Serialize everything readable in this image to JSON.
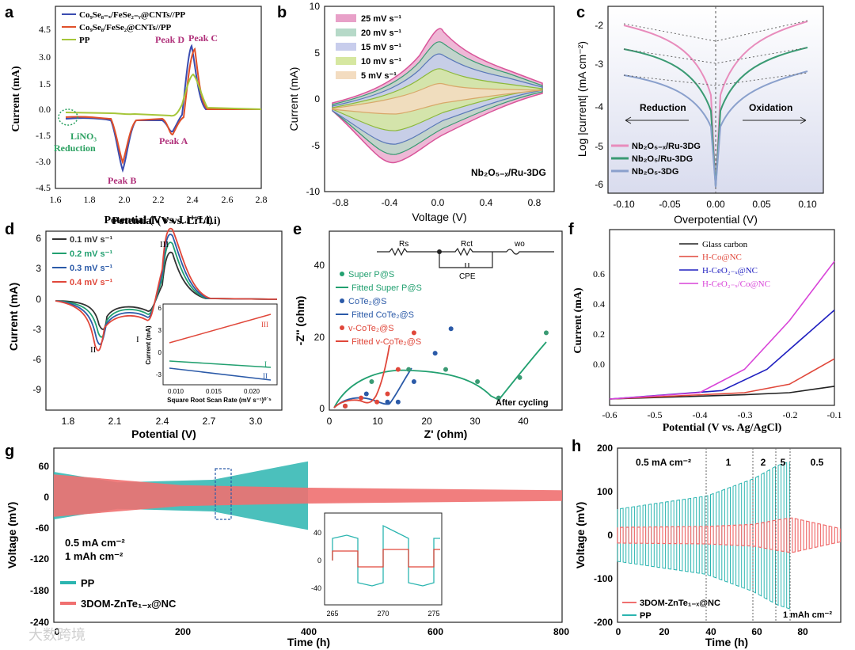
{
  "panels": {
    "a": {
      "letter": "a",
      "xlabel": "Potential (V vs. Li⁺/Li)",
      "ylabel": "Current (mA)",
      "xticks": [
        "1.6",
        "1.8",
        "2.0",
        "2.2",
        "2.4",
        "2.6",
        "2.8"
      ],
      "yticks": [
        "4.5",
        "3.0",
        "1.5",
        "0.0",
        "-1.5",
        "-3.0",
        "-4.5"
      ],
      "legend": [
        "Co₉Se₈₋ₓ/FeSe₂₋ᵧ@CNTs//PP",
        "Co₉Se₈/FeSe₂@CNTs//PP",
        "PP"
      ],
      "annotations": [
        "Peak D",
        "Peak C",
        "Peak A",
        "Peak B",
        "LiNO₃",
        "Reduction"
      ]
    },
    "b": {
      "letter": "b",
      "xlabel": "Voltage (V)",
      "ylabel": "Current (mA)",
      "xticks": [
        "-0.8",
        "-0.4",
        "0.0",
        "0.4",
        "0.8"
      ],
      "yticks": [
        "10",
        "5",
        "0",
        "-5",
        "-10"
      ],
      "legend": [
        "25 mV s⁻¹",
        "20 mV s⁻¹",
        "15 mV s⁻¹",
        "10 mV s⁻¹",
        "5 mV s⁻¹"
      ],
      "sample": "Nb₂O₅₋ₓ/Ru-3DG"
    },
    "c": {
      "letter": "c",
      "xlabel": "Overpotential (V)",
      "ylabel": "Log |current| (mA cm⁻²)",
      "xticks": [
        "-0.10",
        "-0.05",
        "0.00",
        "0.05",
        "0.10"
      ],
      "yticks": [
        "-2",
        "-3",
        "-4",
        "-5",
        "-6"
      ],
      "legend": [
        "Nb₂O₅₋ₓ/Ru-3DG",
        "Nb₂O₅/Ru-3DG",
        "Nb₂O₅-3DG"
      ],
      "labels": [
        "Reduction",
        "Oxidation"
      ]
    },
    "d": {
      "letter": "d",
      "title": "Potential (V vs. Li⁺/Li)",
      "xlabel": "Potential (V)",
      "ylabel": "Current (mA)",
      "xticks": [
        "1.8",
        "2.1",
        "2.4",
        "2.7",
        "3.0"
      ],
      "yticks": [
        "6",
        "3",
        "0",
        "-3",
        "-6",
        "-9"
      ],
      "legend": [
        "0.1 mV s⁻¹",
        "0.2 mV s⁻¹",
        "0.3 mV s⁻¹",
        "0.4 mV s⁻¹"
      ],
      "peaks": [
        "III",
        "II",
        "I"
      ],
      "inset": {
        "xlabel": "Square Root Scan Rate (mV s⁻¹)⁰˙⁵",
        "ylabel": "Current (mA)",
        "xticks": [
          "0.010",
          "0.015",
          "0.020"
        ],
        "yticks": [
          "6",
          "3",
          "0",
          "-3"
        ],
        "lines": [
          "III",
          "I",
          "II"
        ]
      }
    },
    "e": {
      "letter": "e",
      "xlabel": "Z' (ohm)",
      "ylabel": "-Z'' (ohm)",
      "xticks": [
        "0",
        "10",
        "20",
        "30",
        "40"
      ],
      "yticks": [
        "40",
        "20",
        "0"
      ],
      "legend": [
        "Super P@S",
        "Fitted Super P@S",
        "CoTe₂@S",
        "Fitted CoTe₂@S",
        "v-CoTe₂@S",
        "Fitted v-CoTe₂@S"
      ],
      "circuit": [
        "Rs",
        "Rct",
        "wo",
        "CPE"
      ],
      "note": "After cycling"
    },
    "f": {
      "letter": "f",
      "xlabel": "Potential (V vs. Ag/AgCl)",
      "ylabel": "Current (mA)",
      "xticks": [
        "-0.6",
        "-0.5",
        "-0.4",
        "-0.3",
        "-0.2",
        "-0.1"
      ],
      "yticks": [
        "0.6",
        "0.4",
        "0.2",
        "0.0"
      ],
      "legend": [
        "Glass carbon",
        "H-Co@NC",
        "H-CeO₂₋ₓ@NC",
        "H-CeO₂₋ₓ/Co@NC"
      ]
    },
    "g": {
      "letter": "g",
      "xlabel": "Time (h)",
      "ylabel": "Voltage (mV)",
      "xticks": [
        "0",
        "200",
        "400",
        "600",
        "800"
      ],
      "yticks": [
        "60",
        "0",
        "-60",
        "-120",
        "-180",
        "-240"
      ],
      "conditions": [
        "0.5 mA cm⁻²",
        "1 mAh cm⁻²"
      ],
      "legend": [
        "PP",
        "3DOM-ZnTe₁₋ₓ@NC"
      ],
      "inset": {
        "xticks": [
          "265",
          "270",
          "275"
        ],
        "yticks": [
          "40",
          "0",
          "-40"
        ]
      }
    },
    "h": {
      "letter": "h",
      "xlabel": "Time (h)",
      "ylabel": "Voltage (mV)",
      "xticks": [
        "0",
        "20",
        "40",
        "60",
        "80"
      ],
      "yticks": [
        "200",
        "100",
        "0",
        "-100",
        "-200"
      ],
      "rates": [
        "0.5 mA cm⁻²",
        "1",
        "2",
        "5",
        "0.5"
      ],
      "capacity": "1 mAh cm⁻²",
      "legend": [
        "3DOM-ZnTe₁₋ₓ@NC",
        "PP"
      ]
    }
  },
  "watermark": "大数跨境",
  "colors": {
    "pink": "#d9559a",
    "green": "#3a9a73",
    "blue": "#5a78b8",
    "purple": "#b06aa8",
    "teal": "#2bb5b0",
    "salmon": "#f07070",
    "red": "#e0473a",
    "darkblue": "#2b5aa8",
    "magenta": "#d844d8",
    "black": "#222222"
  },
  "chart_data": [
    {
      "panel": "a",
      "type": "line",
      "xlabel": "Potential (V vs. Li⁺/Li)",
      "ylabel": "Current (mA)",
      "xlim": [
        1.6,
        2.8
      ],
      "ylim": [
        -4.5,
        5.0
      ],
      "series": [
        {
          "name": "Co₉Se₈₋ₓ/FeSe₂₋ᵧ@CNTs//PP",
          "x": [
            1.72,
            1.8,
            1.95,
            2.02,
            2.1,
            2.2,
            2.31,
            2.4,
            2.8
          ],
          "y": [
            -0.5,
            -0.5,
            -0.6,
            -3.7,
            -0.6,
            -0.6,
            -1.0,
            3.7,
            0.0
          ]
        },
        {
          "name": "Co₉Se₈/FeSe₂@CNTs//PP",
          "x": [
            1.72,
            1.8,
            1.95,
            2.02,
            2.1,
            2.2,
            2.31,
            2.42,
            2.8
          ],
          "y": [
            -0.5,
            -0.4,
            -0.6,
            -3.3,
            -0.6,
            -0.6,
            -1.2,
            3.5,
            0.0
          ]
        },
        {
          "name": "PP",
          "x": [
            1.72,
            2.0,
            2.31,
            2.42,
            2.8
          ],
          "y": [
            -0.1,
            -0.2,
            -0.4,
            2.0,
            0.0
          ]
        }
      ]
    },
    {
      "panel": "b",
      "type": "line",
      "xlabel": "Voltage (V)",
      "ylabel": "Current (mA)",
      "xlim": [
        -0.9,
        0.9
      ],
      "ylim": [
        -10,
        10
      ],
      "series": [
        {
          "name": "25 mV s⁻¹",
          "peak_anodic": 8.0,
          "peak_cathodic": -7.0
        },
        {
          "name": "20 mV s⁻¹",
          "peak_anodic": 6.5,
          "peak_cathodic": -6.0
        },
        {
          "name": "15 mV s⁻¹",
          "peak_anodic": 5.0,
          "peak_cathodic": -4.8
        },
        {
          "name": "10 mV s⁻¹",
          "peak_anodic": 3.5,
          "peak_cathodic": -3.4
        },
        {
          "name": "5 mV s⁻¹",
          "peak_anodic": 1.8,
          "peak_cathodic": -1.8
        }
      ]
    },
    {
      "panel": "c",
      "type": "line",
      "xlabel": "Overpotential (V)",
      "ylabel": "Log |current| (mA cm⁻²)",
      "xlim": [
        -0.12,
        0.12
      ],
      "ylim": [
        -6.2,
        -1.6
      ],
      "series": [
        {
          "name": "Nb₂O₅₋ₓ/Ru-3DG",
          "x": [
            -0.1,
            -0.05,
            0,
            0.05,
            0.1
          ],
          "y": [
            -1.9,
            -2.3,
            -5.9,
            -2.3,
            -1.9
          ]
        },
        {
          "name": "Nb₂O₅/Ru-3DG",
          "x": [
            -0.1,
            -0.05,
            0,
            0.05,
            0.1
          ],
          "y": [
            -2.55,
            -2.9,
            -5.9,
            -2.9,
            -2.55
          ]
        },
        {
          "name": "Nb₂O₅-3DG",
          "x": [
            -0.1,
            -0.05,
            0,
            0.05,
            0.1
          ],
          "y": [
            -3.2,
            -3.6,
            -5.9,
            -3.6,
            -3.15
          ]
        }
      ]
    },
    {
      "panel": "d",
      "type": "line",
      "xlabel": "Potential (V)",
      "ylabel": "Current (mA)",
      "xlim": [
        1.65,
        3.2
      ],
      "ylim": [
        -10.5,
        6
      ],
      "series": [
        {
          "name": "0.1 mV s⁻¹",
          "peak_III": 2.3,
          "peak_II": -1.0
        },
        {
          "name": "0.2 mV s⁻¹",
          "peak_III": 3.2,
          "peak_II": -1.8
        },
        {
          "name": "0.3 mV s⁻¹",
          "peak_III": 4.2,
          "peak_II": -2.6
        },
        {
          "name": "0.4 mV s⁻¹",
          "peak_III": 5.0,
          "peak_II": -3.4
        }
      ]
    },
    {
      "panel": "e",
      "type": "scatter",
      "xlabel": "Z' (ohm)",
      "ylabel": "-Z'' (ohm)",
      "xlim": [
        0,
        44
      ],
      "ylim": [
        0,
        44
      ],
      "series": [
        {
          "name": "Super P@S",
          "x": [
            3,
            8,
            15,
            22,
            28,
            32,
            36,
            41
          ],
          "y": [
            1,
            7,
            10,
            10,
            7,
            3,
            8,
            19
          ]
        },
        {
          "name": "CoTe₂@S",
          "x": [
            3,
            7,
            11,
            13,
            16,
            20,
            23
          ],
          "y": [
            1,
            4,
            2,
            2,
            7,
            14,
            20
          ]
        },
        {
          "name": "v-CoTe₂@S",
          "x": [
            3,
            6,
            9,
            11,
            13,
            16
          ],
          "y": [
            1,
            3,
            2,
            4,
            10,
            19
          ]
        }
      ]
    },
    {
      "panel": "f",
      "type": "line",
      "xlabel": "Potential (V vs. Ag/AgCl)",
      "ylabel": "Current (mA)",
      "xlim": [
        -0.6,
        -0.1
      ],
      "ylim": [
        -0.05,
        0.78
      ],
      "series": [
        {
          "name": "Glass carbon",
          "x": [
            -0.6,
            -0.3,
            -0.2,
            -0.1
          ],
          "y": [
            -0.02,
            0.0,
            0.01,
            0.04
          ]
        },
        {
          "name": "H-Co@NC",
          "x": [
            -0.6,
            -0.3,
            -0.2,
            -0.1
          ],
          "y": [
            -0.02,
            0.01,
            0.05,
            0.17
          ]
        },
        {
          "name": "H-CeO₂₋ₓ@NC",
          "x": [
            -0.6,
            -0.35,
            -0.25,
            -0.1
          ],
          "y": [
            -0.02,
            0.02,
            0.12,
            0.4
          ]
        },
        {
          "name": "H-CeO₂₋ₓ/Co@NC",
          "x": [
            -0.6,
            -0.4,
            -0.3,
            -0.2,
            -0.1
          ],
          "y": [
            -0.02,
            0.01,
            0.12,
            0.35,
            0.63
          ]
        }
      ]
    },
    {
      "panel": "g",
      "type": "line",
      "xlabel": "Time (h)",
      "ylabel": "Voltage (mV)",
      "xlim": [
        0,
        800
      ],
      "ylim": [
        -240,
        90
      ],
      "series": [
        {
          "name": "PP",
          "x": [
            0,
            100,
            250,
            400
          ],
          "amplitude": [
            45,
            25,
            30,
            65
          ]
        },
        {
          "name": "3DOM-ZnTe₁₋ₓ@NC",
          "x": [
            0,
            200,
            400,
            800
          ],
          "amplitude": [
            40,
            20,
            15,
            10
          ]
        }
      ]
    },
    {
      "panel": "h",
      "type": "line",
      "xlabel": "Time (h)",
      "ylabel": "Voltage (mV)",
      "xlim": [
        0,
        95
      ],
      "ylim": [
        -200,
        200
      ],
      "series": [
        {
          "name": "3DOM-ZnTe₁₋ₓ@NC",
          "x": [
            0,
            38,
            58,
            68,
            74,
            95
          ],
          "amplitude": [
            18,
            20,
            25,
            35,
            40,
            15
          ]
        },
        {
          "name": "PP",
          "x": [
            0,
            38,
            58,
            68,
            74
          ],
          "amplitude": [
            60,
            90,
            130,
            160,
            170
          ]
        }
      ]
    }
  ]
}
